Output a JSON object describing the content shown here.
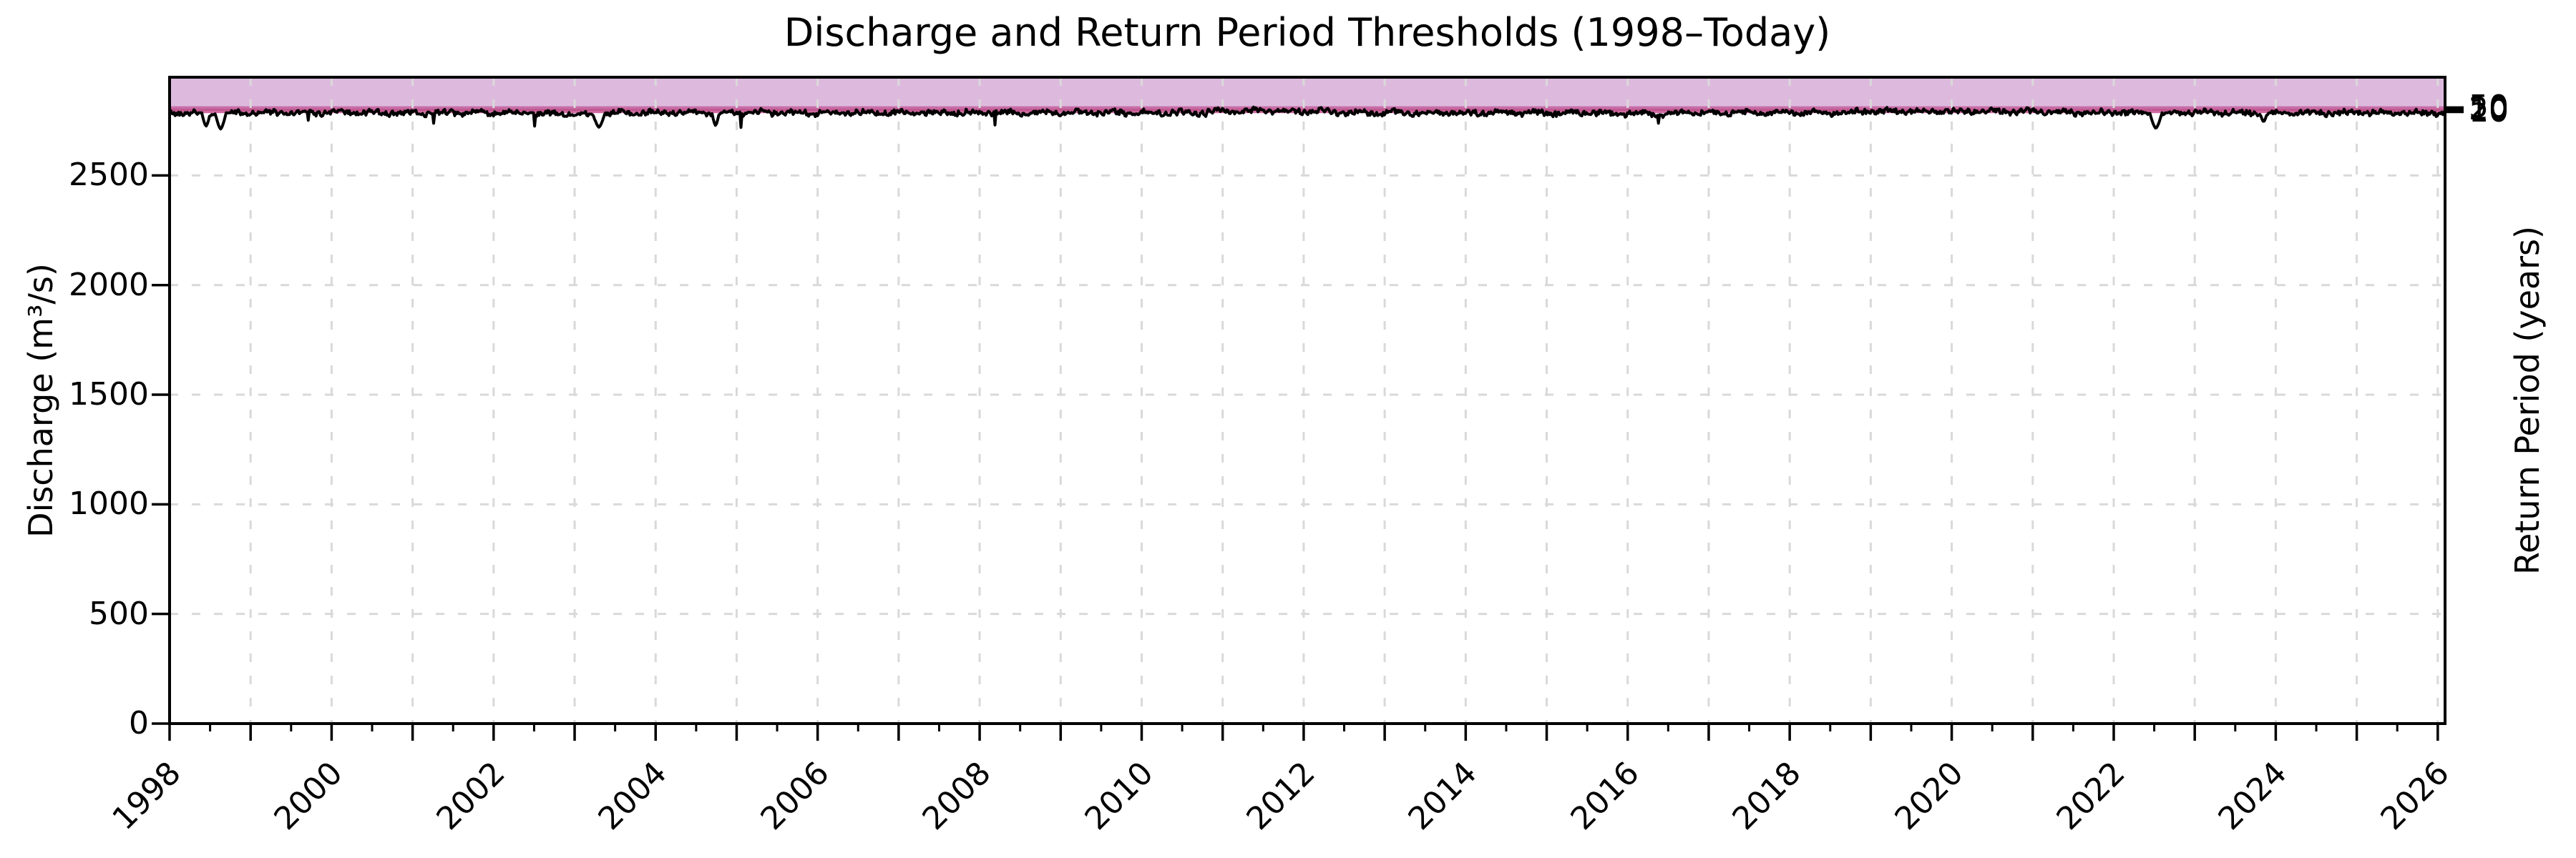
{
  "figure": {
    "title": "Discharge and Return Period Thresholds (1998–Today)",
    "ylabel_left": "Discharge (m³/s)",
    "ylabel_right": "Return Period (years)"
  },
  "chart_data": {
    "type": "line",
    "title": "Discharge and Return Period Thresholds (1998–Today)",
    "xlabel": "",
    "ylabel": "Discharge (m³/s)",
    "ylabel_right": "Return Period (years)",
    "x_axis": {
      "min": 1998.0,
      "max": 2026.09,
      "tick_label_years": [
        1998,
        2000,
        2002,
        2004,
        2006,
        2008,
        2010,
        2012,
        2014,
        2016,
        2018,
        2020,
        2022,
        2024,
        2026
      ],
      "major_tick_step_years": 1,
      "minor_tick_step_years": 0.5,
      "tick_label_rotation_deg": 45
    },
    "y_axis": {
      "min": 0,
      "max": 2948,
      "ticks": [
        0,
        500,
        1000,
        1500,
        2000,
        2500
      ]
    },
    "right_axis": {
      "tick_labels": [
        "10",
        "20",
        "50"
      ],
      "tick_discharge_values": [
        2790,
        2800,
        2810
      ]
    },
    "thresholds": [
      {
        "return_period_years": 10,
        "discharge": 2790,
        "color": "#d06ba2"
      },
      {
        "return_period_years": 20,
        "discharge": 2800,
        "color": "#c2578f"
      },
      {
        "return_period_years": 50,
        "discharge": 2810,
        "color": "#c76da6"
      }
    ],
    "exceedance_band": {
      "from_discharge": 2810,
      "to_discharge": 2948,
      "fill": "#800080",
      "alpha": 0.27
    },
    "grid": {
      "show": true,
      "color": "#d9d9d9",
      "style": "dashed",
      "dash": "12 19"
    },
    "series": [
      {
        "name": "Discharge",
        "color": "#000000",
        "line_width": 4,
        "baseline": 2786,
        "noise_amplitude": 13,
        "clip_max": 2812,
        "points_per_year": 73,
        "seed": 42,
        "elevated_segments": [
          {
            "from": 2010.8,
            "to": 2012.3,
            "offset": 8
          },
          {
            "from": 2018.8,
            "to": 2021.3,
            "offset": 6
          },
          {
            "from": 2002.55,
            "to": 2003.25,
            "offset": -6
          },
          {
            "from": 2015.7,
            "to": 2016.6,
            "offset": -4
          }
        ],
        "dips": [
          {
            "x": 1998.45,
            "min_value": 2725,
            "half_width_years": 0.035
          },
          {
            "x": 1998.63,
            "min_value": 2712,
            "half_width_years": 0.045
          },
          {
            "x": 2003.3,
            "min_value": 2720,
            "half_width_years": 0.05
          },
          {
            "x": 2004.74,
            "min_value": 2728,
            "half_width_years": 0.03
          },
          {
            "x": 2022.52,
            "min_value": 2715,
            "half_width_years": 0.05
          },
          {
            "x": 2023.85,
            "min_value": 2745,
            "half_width_years": 0.03
          }
        ]
      }
    ]
  },
  "colors": {
    "spine": "#000000",
    "background": "#ffffff",
    "grid": "#d9d9d9",
    "band_on_white": "#d9bbd9"
  }
}
